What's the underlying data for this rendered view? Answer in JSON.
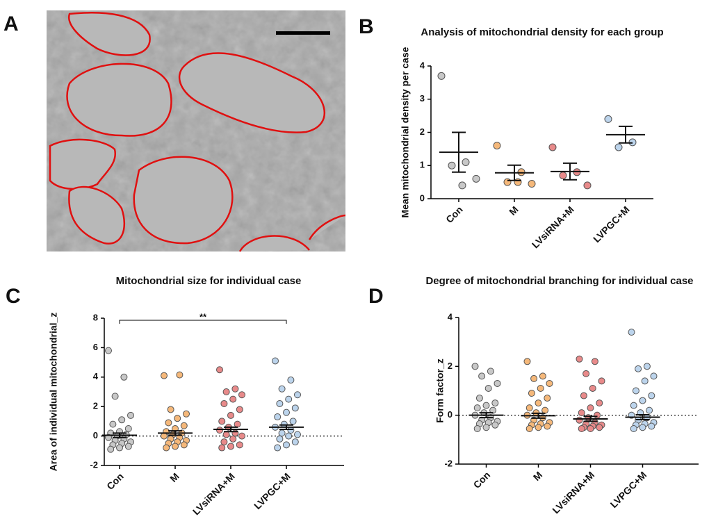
{
  "image_panel": {
    "label": "A"
  },
  "chart_data": [
    {
      "type": "dot",
      "label": "B",
      "title": "Analysis of mitochondrial density for each group",
      "y_label": "Mean mitochondrial density per case",
      "categories": [
        "Con",
        "M",
        "LVsiRNA+M",
        "LVPGC+M"
      ],
      "colors": [
        "#c8c8c8",
        "#f5b87a",
        "#e88a8a",
        "#bcd4ec"
      ],
      "points": [
        [
          3.7,
          1.1,
          1.0,
          0.6,
          0.4
        ],
        [
          1.6,
          0.8,
          0.5,
          0.45,
          0.5
        ],
        [
          1.55,
          0.8,
          0.7,
          0.4
        ],
        [
          2.4,
          1.7,
          1.55
        ]
      ],
      "means": [
        1.4,
        0.78,
        0.82,
        1.93
      ],
      "errors": [
        0.6,
        0.23,
        0.25,
        0.25
      ],
      "ylim": [
        0,
        4
      ],
      "yticks": [
        0,
        1,
        2,
        3,
        4
      ]
    },
    {
      "type": "dot",
      "label": "C",
      "title": "Mitochondrial size for individual case",
      "y_label": "Area of individual mitochondrial_z",
      "categories": [
        "Con",
        "M",
        "LVsiRNA+M",
        "LVPGC+M"
      ],
      "colors": [
        "#c8c8c8",
        "#f5b87a",
        "#e88a8a",
        "#bcd4ec"
      ],
      "points": [
        [
          5.8,
          4.0,
          2.7,
          1.4,
          1.1,
          0.8,
          0.5,
          0.3,
          0.2,
          0.1,
          0,
          -0.1,
          -0.2,
          -0.3,
          -0.4,
          -0.5,
          -0.6,
          -0.7,
          -0.8,
          -0.9
        ],
        [
          4.1,
          4.15,
          1.8,
          1.5,
          1.2,
          0.9,
          0.7,
          0.5,
          0.3,
          0.2,
          0.1,
          0,
          -0.1,
          -0.2,
          -0.3,
          -0.4,
          -0.5,
          -0.6,
          -0.7,
          -0.8
        ],
        [
          4.5,
          3.2,
          3.0,
          2.8,
          2.5,
          2.2,
          1.8,
          1.4,
          1.0,
          0.8,
          0.6,
          0.4,
          0.2,
          0.1,
          0,
          -0.2,
          -0.4,
          -0.6,
          -0.7,
          -0.8
        ],
        [
          5.1,
          3.8,
          3.2,
          2.8,
          2.5,
          2.2,
          1.9,
          1.6,
          1.3,
          1.0,
          0.8,
          0.6,
          0.4,
          0.2,
          0.1,
          0,
          -0.2,
          -0.4,
          -0.6,
          -0.8
        ]
      ],
      "means": [
        0.05,
        0.2,
        0.45,
        0.6
      ],
      "errors": [
        0.15,
        0.15,
        0.15,
        0.15
      ],
      "hline": 0,
      "annotation": "**",
      "ylim": [
        -2,
        8
      ],
      "yticks": [
        -2,
        0,
        2,
        4,
        6,
        8
      ]
    },
    {
      "type": "dot",
      "label": "D",
      "title": "Degree of mitochondrial branching for individual case",
      "y_label": "Form factor_z",
      "categories": [
        "Con",
        "M",
        "LVsiRNA+M",
        "LVPGC+M"
      ],
      "colors": [
        "#c8c8c8",
        "#f5b87a",
        "#e88a8a",
        "#bcd4ec"
      ],
      "points": [
        [
          2.0,
          1.8,
          1.6,
          1.3,
          1.1,
          0.7,
          0.5,
          0.4,
          0.3,
          0.2,
          0.1,
          0,
          -0.1,
          -0.2,
          -0.25,
          -0.3,
          -0.35,
          -0.4,
          -0.5,
          -0.55
        ],
        [
          2.2,
          1.6,
          1.5,
          1.3,
          1.1,
          0.9,
          0.7,
          0.5,
          0.3,
          0.2,
          0.1,
          0,
          -0.1,
          -0.2,
          -0.3,
          -0.35,
          -0.4,
          -0.45,
          -0.5,
          -0.55
        ],
        [
          2.3,
          2.2,
          1.7,
          1.4,
          1.1,
          0.8,
          0.5,
          0.3,
          0.1,
          0,
          -0.1,
          -0.2,
          -0.3,
          -0.35,
          -0.4,
          -0.45,
          -0.5,
          -0.5,
          -0.55,
          -0.55
        ],
        [
          3.4,
          2.0,
          1.9,
          1.6,
          1.4,
          1.0,
          0.8,
          0.6,
          0.4,
          0.2,
          0.1,
          0,
          -0.1,
          -0.2,
          -0.3,
          -0.35,
          -0.4,
          -0.45,
          -0.5,
          -0.55
        ]
      ],
      "means": [
        0,
        -0.02,
        -0.15,
        -0.08
      ],
      "errors": [
        0.1,
        0.1,
        0.1,
        0.1
      ],
      "hline": 0,
      "ylim": [
        -2,
        4
      ],
      "yticks": [
        -2,
        0,
        2,
        4
      ]
    }
  ]
}
